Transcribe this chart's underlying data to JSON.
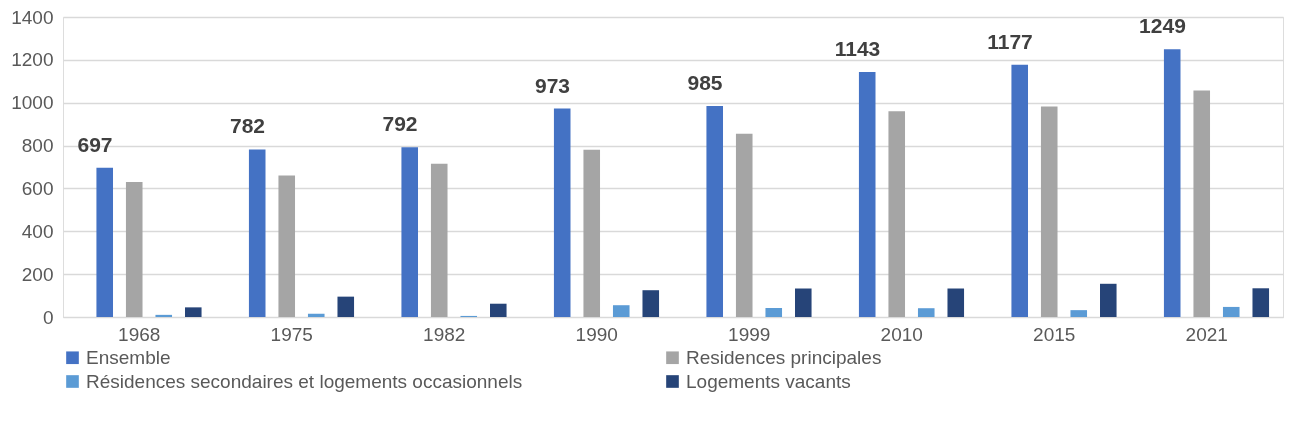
{
  "chart_data": {
    "type": "bar",
    "categories": [
      "1968",
      "1975",
      "1982",
      "1990",
      "1999",
      "2010",
      "2015",
      "2021"
    ],
    "series": [
      {
        "name": "Ensemble",
        "color": "#4472c4",
        "values": [
          697,
          782,
          792,
          973,
          985,
          1143,
          1177,
          1249
        ],
        "value_labels": [
          "697",
          "782",
          "792",
          "973",
          "985",
          "1143",
          "1177",
          "1249"
        ]
      },
      {
        "name": "Residences principales",
        "color": "#a5a5a5",
        "values": [
          630,
          660,
          715,
          780,
          855,
          960,
          982,
          1057
        ]
      },
      {
        "name": "Résidences secondaires et logements occasionnels",
        "color": "#5b9bd5",
        "values": [
          10,
          15,
          5,
          55,
          42,
          41,
          32,
          47
        ]
      },
      {
        "name": "Logements vacants",
        "color": "#264478",
        "values": [
          45,
          95,
          62,
          125,
          133,
          133,
          155,
          134
        ]
      }
    ],
    "ylim": [
      0,
      1400
    ],
    "yticks": [
      0,
      200,
      400,
      600,
      800,
      1000,
      1200,
      1400
    ],
    "grid": "y",
    "legend": "bottom"
  }
}
